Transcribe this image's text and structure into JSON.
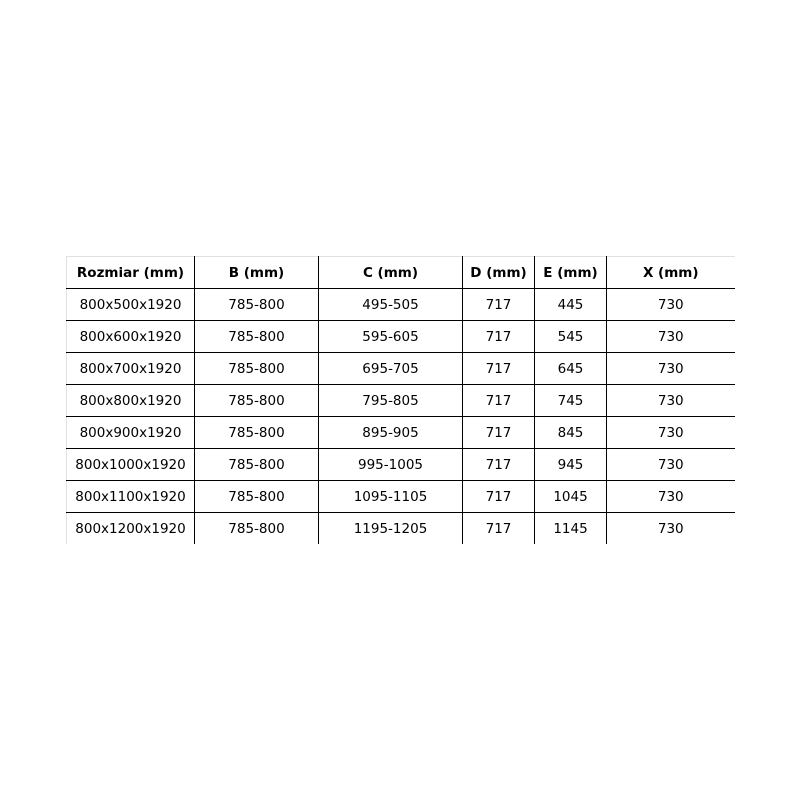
{
  "table": {
    "headers": [
      "Rozmiar (mm)",
      "B (mm)",
      "C (mm)",
      "D (mm)",
      "E (mm)",
      "X (mm)"
    ],
    "rows": [
      [
        "800x500x1920",
        "785-800",
        "495-505",
        "717",
        "445",
        "730"
      ],
      [
        "800x600x1920",
        "785-800",
        "595-605",
        "717",
        "545",
        "730"
      ],
      [
        "800x700x1920",
        "785-800",
        "695-705",
        "717",
        "645",
        "730"
      ],
      [
        "800x800x1920",
        "785-800",
        "795-805",
        "717",
        "745",
        "730"
      ],
      [
        "800x900x1920",
        "785-800",
        "895-905",
        "717",
        "845",
        "730"
      ],
      [
        "800x1000x1920",
        "785-800",
        "995-1005",
        "717",
        "945",
        "730"
      ],
      [
        "800x1100x1920",
        "785-800",
        "1095-1105",
        "717",
        "1045",
        "730"
      ],
      [
        "800x1200x1920",
        "785-800",
        "1195-1205",
        "717",
        "1145",
        "730"
      ]
    ]
  }
}
